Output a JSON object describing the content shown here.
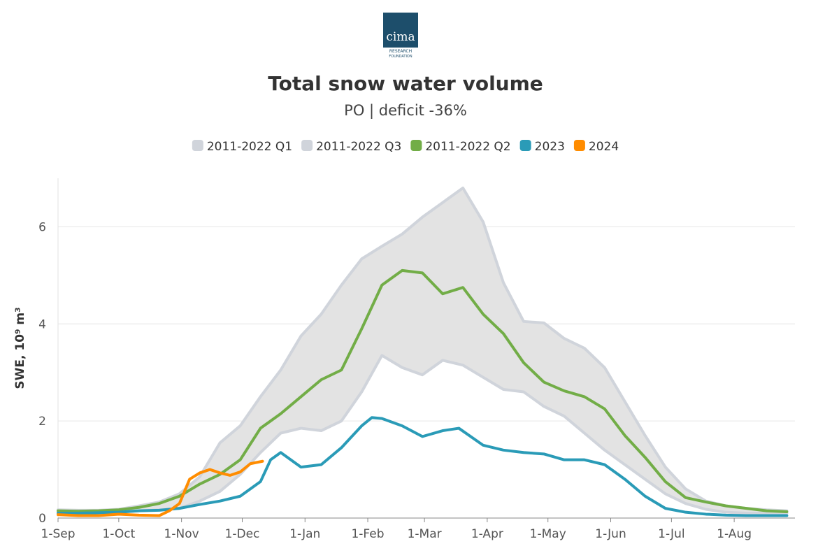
{
  "logo": {
    "name": "cima",
    "line1": "RESEARCH",
    "line2": "FOUNDATION"
  },
  "chart_data": {
    "type": "line",
    "title": "Total snow water volume",
    "subtitle": "PO | deficit -36%",
    "y_label": "SWE, 10⁹ m³",
    "xlim": [
      0,
      364
    ],
    "ylim": [
      0,
      7
    ],
    "xticks": [
      {
        "value": 0,
        "label": "1-Sep"
      },
      {
        "value": 30,
        "label": "1-Oct"
      },
      {
        "value": 61,
        "label": "1-Nov"
      },
      {
        "value": 91,
        "label": "1-Dec"
      },
      {
        "value": 122,
        "label": "1-Jan"
      },
      {
        "value": 153,
        "label": "1-Feb"
      },
      {
        "value": 181,
        "label": "1-Mar"
      },
      {
        "value": 212,
        "label": "1-Apr"
      },
      {
        "value": 242,
        "label": "1-May"
      },
      {
        "value": 273,
        "label": "1-Jun"
      },
      {
        "value": 303,
        "label": "1-Jul"
      },
      {
        "value": 334,
        "label": "1-Aug"
      }
    ],
    "yticks": [
      0,
      2,
      4,
      6
    ],
    "grid": true,
    "shaded_between": [
      0,
      1
    ],
    "band_color": "#e3e3e3",
    "series": [
      {
        "name": "2011-2022 Q1",
        "color": "#d0d4db",
        "x": [
          0,
          10,
          20,
          30,
          40,
          50,
          60,
          70,
          80,
          90,
          100,
          110,
          120,
          130,
          140,
          150,
          160,
          170,
          180,
          190,
          200,
          210,
          220,
          230,
          240,
          250,
          260,
          270,
          280,
          290,
          300,
          310,
          320,
          330,
          340,
          350,
          360
        ],
        "values": [
          0.12,
          0.1,
          0.1,
          0.12,
          0.15,
          0.17,
          0.2,
          0.35,
          0.55,
          0.9,
          1.35,
          1.75,
          1.85,
          1.8,
          2.0,
          2.6,
          3.35,
          3.1,
          2.95,
          3.25,
          3.15,
          2.9,
          2.65,
          2.6,
          2.3,
          2.1,
          1.75,
          1.4,
          1.1,
          0.8,
          0.5,
          0.3,
          0.18,
          0.12,
          0.1,
          0.1,
          0.1
        ]
      },
      {
        "name": "2011-2022 Q3",
        "color": "#d0d4db",
        "x": [
          0,
          10,
          20,
          30,
          40,
          50,
          60,
          70,
          80,
          90,
          100,
          110,
          120,
          130,
          140,
          150,
          160,
          170,
          180,
          190,
          200,
          210,
          220,
          230,
          240,
          250,
          260,
          270,
          280,
          290,
          300,
          310,
          320,
          330,
          340,
          350,
          360
        ],
        "values": [
          0.17,
          0.16,
          0.16,
          0.18,
          0.25,
          0.33,
          0.5,
          0.85,
          1.55,
          1.9,
          2.5,
          3.05,
          3.75,
          4.2,
          4.8,
          5.34,
          5.6,
          5.85,
          6.2,
          6.5,
          6.8,
          6.1,
          4.85,
          4.05,
          4.02,
          3.7,
          3.5,
          3.1,
          2.4,
          1.7,
          1.05,
          0.6,
          0.35,
          0.25,
          0.2,
          0.17,
          0.15
        ]
      },
      {
        "name": "2011-2022 Q2",
        "color": "#72ad47",
        "x": [
          0,
          10,
          20,
          30,
          40,
          50,
          60,
          70,
          80,
          90,
          100,
          110,
          120,
          130,
          140,
          150,
          160,
          170,
          180,
          190,
          200,
          210,
          220,
          230,
          240,
          250,
          260,
          270,
          280,
          290,
          300,
          310,
          320,
          330,
          340,
          350,
          360
        ],
        "values": [
          0.15,
          0.14,
          0.15,
          0.17,
          0.22,
          0.3,
          0.45,
          0.7,
          0.9,
          1.2,
          1.85,
          2.15,
          2.5,
          2.85,
          3.05,
          3.9,
          4.8,
          5.1,
          5.05,
          4.62,
          4.75,
          4.2,
          3.8,
          3.2,
          2.8,
          2.62,
          2.5,
          2.25,
          1.7,
          1.25,
          0.75,
          0.42,
          0.33,
          0.25,
          0.2,
          0.15,
          0.13
        ]
      },
      {
        "name": "2023",
        "color": "#2a9bb7",
        "x": [
          0,
          10,
          20,
          30,
          40,
          50,
          60,
          70,
          80,
          90,
          100,
          105,
          110,
          120,
          130,
          140,
          150,
          155,
          160,
          170,
          180,
          190,
          198,
          210,
          220,
          230,
          240,
          250,
          260,
          270,
          280,
          290,
          300,
          310,
          320,
          330,
          340,
          350,
          360
        ],
        "values": [
          0.1,
          0.1,
          0.11,
          0.12,
          0.15,
          0.16,
          0.2,
          0.28,
          0.35,
          0.45,
          0.75,
          1.2,
          1.35,
          1.05,
          1.1,
          1.45,
          1.9,
          2.07,
          2.05,
          1.9,
          1.68,
          1.8,
          1.85,
          1.5,
          1.4,
          1.35,
          1.32,
          1.2,
          1.2,
          1.1,
          0.8,
          0.45,
          0.2,
          0.12,
          0.08,
          0.06,
          0.05,
          0.05,
          0.05
        ]
      },
      {
        "name": "2024",
        "color": "#ff8c00",
        "x": [
          0,
          10,
          20,
          30,
          40,
          50,
          55,
          60,
          65,
          70,
          75,
          80,
          85,
          90,
          95,
          101
        ],
        "values": [
          0.07,
          0.05,
          0.05,
          0.08,
          0.06,
          0.05,
          0.15,
          0.3,
          0.8,
          0.93,
          1.0,
          0.93,
          0.88,
          0.95,
          1.12,
          1.17
        ]
      }
    ]
  }
}
